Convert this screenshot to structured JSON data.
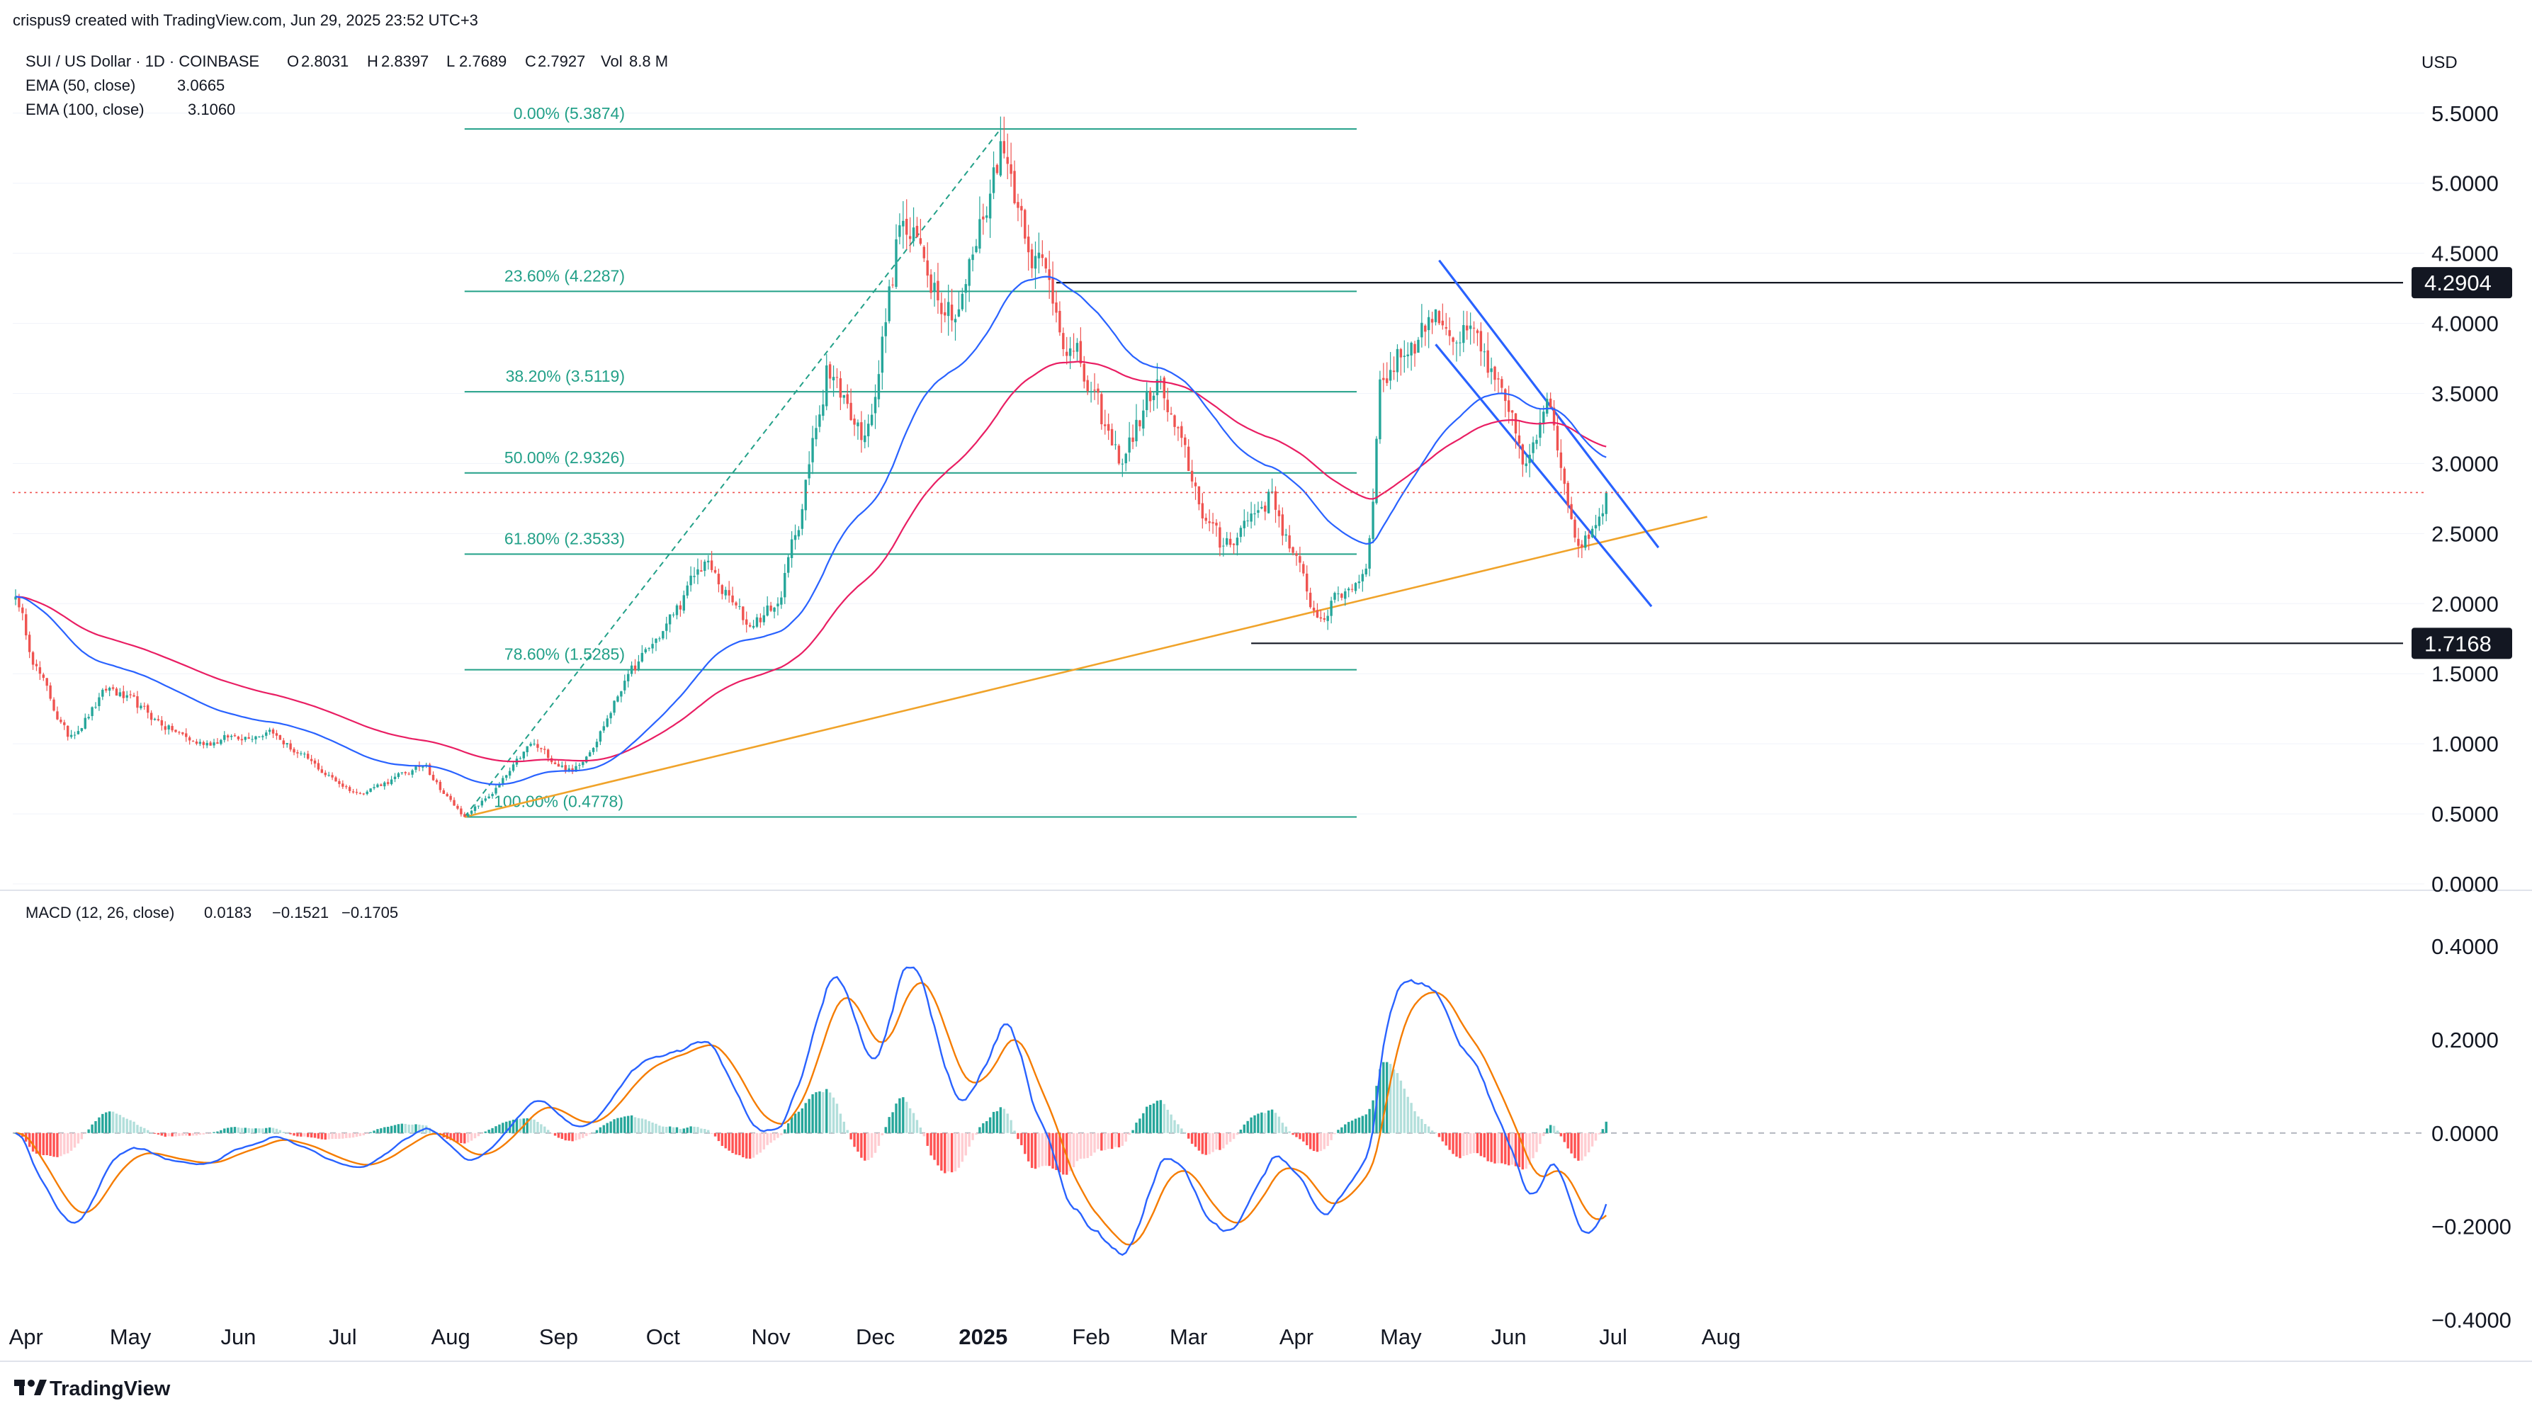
{
  "header": {
    "attribution": "crispus9 created with TradingView.com, Jun 29, 2025 23:52 UTC+3",
    "symbol": "SUI / US Dollar · 1D · COINBASE",
    "ohlc": [
      {
        "k": "O",
        "v": "2.8031"
      },
      {
        "k": "H",
        "v": "2.8397"
      },
      {
        "k": "L",
        "v": "2.7689"
      },
      {
        "k": "C",
        "v": "2.7927"
      },
      {
        "k": "Vol",
        "v": "8.8 M"
      }
    ],
    "ema50": {
      "label": "EMA (50, close)",
      "value": "3.0665"
    },
    "ema100": {
      "label": "EMA (100, close)",
      "value": "3.1060"
    },
    "macd": {
      "label": "MACD (12, 26, close)",
      "hist": "0.0183",
      "macd": "−0.1521",
      "signal": "−0.1705"
    },
    "currency": "USD",
    "brand": "TradingView"
  },
  "colors": {
    "up": "#26a69a",
    "down": "#ef5350",
    "ema50": "#2962ff",
    "ema100": "#e91e63",
    "fib": "#22a088",
    "trend": "#f0a32a",
    "channel": "#2962ff",
    "macd": "#2962ff",
    "signal": "#f57c00"
  },
  "chart_data": [
    {
      "type": "candlestick",
      "price_axis": {
        "ticks": [
          "0.0000",
          "0.5000",
          "1.0000",
          "1.5000",
          "2.0000",
          "2.5000",
          "3.0000",
          "3.5000",
          "4.0000",
          "4.5000",
          "5.0000",
          "5.5000"
        ],
        "range": [
          0,
          5.6
        ]
      },
      "time_axis": {
        "ticks": [
          "Apr",
          "May",
          "Jun",
          "Jul",
          "Aug",
          "Sep",
          "Oct",
          "Nov",
          "Dec",
          "2025",
          "Feb",
          "Mar",
          "Apr",
          "May",
          "Jun",
          "Jul",
          "Aug"
        ]
      },
      "anchors": [
        {
          "date": "2024-03-29",
          "close": 2.05
        },
        {
          "date": "2024-04-13",
          "close": 1.05
        },
        {
          "date": "2024-04-25",
          "close": 1.4
        },
        {
          "date": "2024-05-20",
          "close": 1.0
        },
        {
          "date": "2024-06-10",
          "close": 1.1
        },
        {
          "date": "2024-07-05",
          "close": 0.65
        },
        {
          "date": "2024-07-25",
          "close": 0.85
        },
        {
          "date": "2024-08-05",
          "close": 0.4778
        },
        {
          "date": "2024-08-24",
          "close": 1.0
        },
        {
          "date": "2024-09-05",
          "close": 0.8
        },
        {
          "date": "2024-09-20",
          "close": 1.45
        },
        {
          "date": "2024-10-13",
          "close": 2.3
        },
        {
          "date": "2024-10-25",
          "close": 1.85
        },
        {
          "date": "2024-11-03",
          "close": 2.0
        },
        {
          "date": "2024-11-17",
          "close": 3.7
        },
        {
          "date": "2024-11-28",
          "close": 3.2
        },
        {
          "date": "2024-12-08",
          "close": 4.7
        },
        {
          "date": "2024-12-25",
          "close": 4.1
        },
        {
          "date": "2025-01-06",
          "close": 5.3
        },
        {
          "date": "2025-01-27",
          "close": 3.8
        },
        {
          "date": "2025-02-09",
          "close": 3.0
        },
        {
          "date": "2025-02-20",
          "close": 3.6
        },
        {
          "date": "2025-03-10",
          "close": 2.4
        },
        {
          "date": "2025-03-25",
          "close": 2.8
        },
        {
          "date": "2025-04-07",
          "close": 1.9
        },
        {
          "date": "2025-04-21",
          "close": 2.25
        },
        {
          "date": "2025-04-25",
          "close": 3.6
        },
        {
          "date": "2025-05-11",
          "close": 4.1
        },
        {
          "date": "2025-05-24",
          "close": 3.8
        },
        {
          "date": "2025-06-06",
          "close": 3.0
        },
        {
          "date": "2025-06-13",
          "close": 3.4
        },
        {
          "date": "2025-06-22",
          "close": 2.4
        },
        {
          "date": "2025-06-29",
          "close": 2.7927
        }
      ],
      "series": [
        {
          "name": "EMA (50, close)",
          "last": 3.0665
        },
        {
          "name": "EMA (100, close)",
          "last": 3.106
        }
      ],
      "fib_retracement": {
        "from": {
          "date": "2024-08-05",
          "price": 0.4778
        },
        "to": {
          "date": "2025-01-06",
          "price": 5.3874
        },
        "levels": [
          {
            "label": "0.00% (5.3874)",
            "price": 5.3874
          },
          {
            "label": "23.60% (4.2287)",
            "price": 4.2287
          },
          {
            "label": "38.20% (3.5119)",
            "price": 3.5119
          },
          {
            "label": "50.00% (2.9326)",
            "price": 2.9326
          },
          {
            "label": "61.80% (2.3533)",
            "price": 2.3533
          },
          {
            "label": "78.60% (1.5285)",
            "price": 1.5285
          },
          {
            "label": "100.00% (0.4778)",
            "price": 0.4778
          }
        ]
      },
      "horizontal_levels": [
        {
          "label": "4.2904",
          "price": 4.2904,
          "from": "2025-01-22"
        },
        {
          "label": "1.7168",
          "price": 1.7168,
          "from": "2025-03-19"
        }
      ],
      "trendline": {
        "from": {
          "date": "2024-08-05",
          "price": 0.4778
        },
        "to": {
          "date": "2025-07-28",
          "price": 2.62
        }
      },
      "channel": [
        {
          "from": {
            "date": "2025-05-12",
            "price": 4.45
          },
          "to": {
            "date": "2025-07-14",
            "price": 2.4
          }
        },
        {
          "from": {
            "date": "2025-05-11",
            "price": 3.85
          },
          "to": {
            "date": "2025-07-12",
            "price": 1.98
          }
        }
      ],
      "last_price": 2.7927
    },
    {
      "type": "macd",
      "axis": {
        "ticks": [
          "0.4000",
          "0.2000",
          "0.0000",
          "−0.2000",
          "−0.4000"
        ],
        "range": [
          -0.44,
          0.5
        ]
      },
      "last": {
        "histogram": 0.0183,
        "macd": -0.1521,
        "signal": -0.1705
      }
    }
  ]
}
